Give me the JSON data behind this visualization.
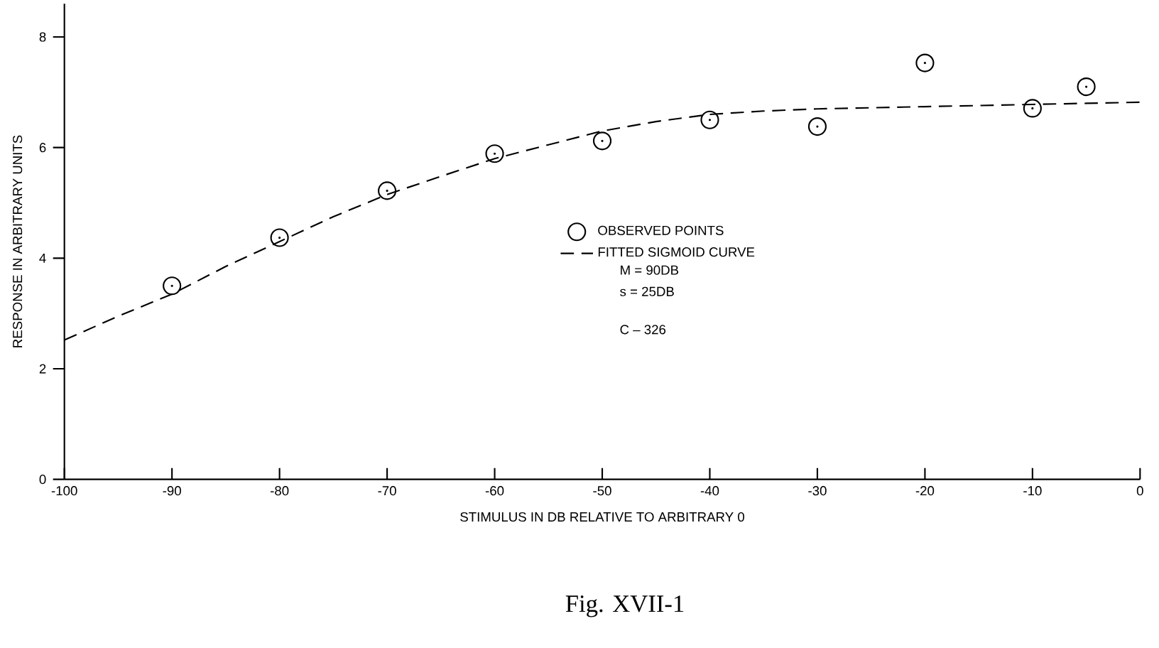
{
  "chart_data": {
    "type": "scatter",
    "xlabel": "STIMULUS IN DB RELATIVE TO ARBITRARY 0",
    "ylabel": "RESPONSE IN ARBITRARY UNITS",
    "xlim": [
      -100,
      0
    ],
    "xticks": [
      -100,
      -90,
      -80,
      -70,
      -60,
      -50,
      -40,
      -30,
      -20,
      -10,
      0
    ],
    "ylim": [
      0,
      8.6
    ],
    "yticks": [
      0,
      2,
      4,
      6,
      8
    ],
    "grid": false,
    "legend": "center",
    "series": [
      {
        "name": "OBSERVED POINTS",
        "type": "scatter",
        "color": "#000000",
        "marker": "circle",
        "x": [
          -90,
          -80,
          -70,
          -60,
          -50,
          -40,
          -30,
          -20,
          -10,
          -5
        ],
        "values": [
          3.5,
          4.37,
          5.22,
          5.89,
          6.12,
          6.5,
          6.38,
          7.53,
          6.71,
          7.1
        ]
      },
      {
        "name": "FITTED SIGMOID CURVE",
        "type": "line",
        "color": "#000000",
        "marker": "none",
        "line_style": "dashed",
        "x": [
          -100,
          -95,
          -90,
          -85,
          -80,
          -75,
          -70,
          -65,
          -60,
          -55,
          -50,
          -45,
          -40,
          -35,
          -30,
          -25,
          -20,
          -15,
          -10,
          -5,
          0
        ],
        "values": [
          2.52,
          2.95,
          3.35,
          3.85,
          4.3,
          4.75,
          5.15,
          5.48,
          5.8,
          6.05,
          6.3,
          6.47,
          6.6,
          6.66,
          6.7,
          6.72,
          6.74,
          6.76,
          6.78,
          6.8,
          6.82
        ]
      }
    ],
    "annotations": [
      "M = 90DB",
      "s = 25DB",
      "C – 326",
      "Fig. XVII-1"
    ]
  }
}
